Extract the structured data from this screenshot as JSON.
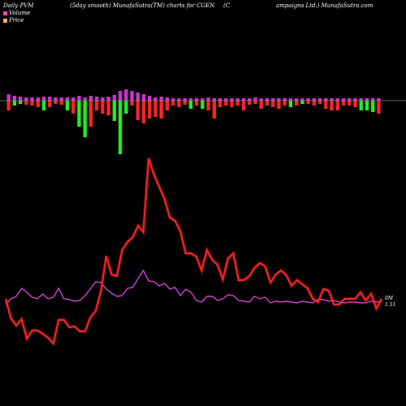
{
  "header": {
    "left": "Daily PVM",
    "center": "(5day smooth) MunafaSutra(TM) charts for CGEN",
    "right_a": "(C",
    "right_b": "ampaigns Ltd.) MunafaSutra.com"
  },
  "legend": {
    "volume_label": "Volume",
    "price_label": "Price",
    "volume_color": "#ff44aa",
    "price_color": "#ffaa66"
  },
  "end_labels": {
    "top": "0M",
    "bottom": "1.51"
  },
  "chart_data": {
    "type": "line",
    "background": "#000000",
    "price_color": "#ff2222",
    "volume_line_color": "#cc44cc",
    "volume_bar_up_color": "#22ee22",
    "volume_bar_down_color": "#ff2222",
    "volume_bar_top_color": "#cc33cc",
    "baseline_color": "#888888",
    "price": [
      368,
      392,
      401,
      393,
      417,
      407,
      407,
      411,
      416,
      423,
      394,
      394,
      403,
      402,
      408,
      408,
      391,
      383,
      358,
      315,
      338,
      340,
      308,
      298,
      292,
      278,
      286,
      195,
      215,
      230,
      245,
      268,
      272,
      285,
      312,
      312,
      316,
      333,
      308,
      320,
      326,
      344,
      318,
      312,
      345,
      345,
      340,
      330,
      324,
      328,
      348,
      338,
      333,
      339,
      352,
      345,
      350,
      355,
      368,
      372,
      356,
      358,
      375,
      375,
      368,
      368,
      368,
      360,
      370,
      362,
      380,
      368
    ],
    "volume_line": [
      375,
      368,
      365,
      355,
      360,
      366,
      368,
      362,
      368,
      366,
      355,
      368,
      369,
      371,
      370,
      364,
      356,
      347,
      348,
      356,
      361,
      365,
      364,
      355,
      354,
      343,
      333,
      346,
      347,
      352,
      349,
      356,
      354,
      364,
      356,
      360,
      370,
      372,
      365,
      365,
      370,
      368,
      363,
      364,
      370,
      371,
      372,
      365,
      368,
      366,
      373,
      371,
      372,
      371,
      372,
      373,
      371,
      372,
      373,
      369,
      369,
      371,
      370,
      372,
      373,
      372,
      372,
      373,
      373,
      371,
      372,
      371
    ],
    "volume_bars": [
      {
        "up": 8,
        "down": 12,
        "green": false
      },
      {
        "up": 6,
        "down": 6,
        "green": true
      },
      {
        "up": 5,
        "down": 4,
        "green": true
      },
      {
        "up": 4,
        "down": 5,
        "green": false
      },
      {
        "up": 4,
        "down": 6,
        "green": false
      },
      {
        "up": 4,
        "down": 8,
        "green": false
      },
      {
        "up": 5,
        "down": 12,
        "green": true
      },
      {
        "up": 5,
        "down": 8,
        "green": false
      },
      {
        "up": 4,
        "down": 4,
        "green": false
      },
      {
        "up": 4,
        "down": 5,
        "green": false
      },
      {
        "up": 4,
        "down": 12,
        "green": true
      },
      {
        "up": 4,
        "down": 16,
        "green": false
      },
      {
        "up": 6,
        "down": 32,
        "green": true
      },
      {
        "up": 4,
        "down": 45,
        "green": true
      },
      {
        "up": 6,
        "down": 32,
        "green": false
      },
      {
        "up": 5,
        "down": 12,
        "green": false
      },
      {
        "up": 4,
        "down": 16,
        "green": false
      },
      {
        "up": 5,
        "down": 18,
        "green": false
      },
      {
        "up": 7,
        "down": 25,
        "green": true
      },
      {
        "up": 12,
        "down": 66,
        "green": true
      },
      {
        "up": 14,
        "down": 16,
        "green": true
      },
      {
        "up": 12,
        "down": 6,
        "green": false
      },
      {
        "up": 10,
        "down": 24,
        "green": false
      },
      {
        "up": 8,
        "down": 28,
        "green": false
      },
      {
        "up": 6,
        "down": 22,
        "green": false
      },
      {
        "up": 4,
        "down": 20,
        "green": false
      },
      {
        "up": 5,
        "down": 22,
        "green": false
      },
      {
        "up": 4,
        "down": 12,
        "green": false
      },
      {
        "up": 3,
        "down": 6,
        "green": false
      },
      {
        "up": 3,
        "down": 8,
        "green": false
      },
      {
        "up": 3,
        "down": 5,
        "green": false
      },
      {
        "up": 3,
        "down": 10,
        "green": true
      },
      {
        "up": 3,
        "down": 6,
        "green": false
      },
      {
        "up": 3,
        "down": 10,
        "green": true
      },
      {
        "up": 4,
        "down": 12,
        "green": false
      },
      {
        "up": 3,
        "down": 22,
        "green": false
      },
      {
        "up": 3,
        "down": 8,
        "green": false
      },
      {
        "up": 3,
        "down": 6,
        "green": false
      },
      {
        "up": 3,
        "down": 8,
        "green": false
      },
      {
        "up": 3,
        "down": 6,
        "green": false
      },
      {
        "up": 3,
        "down": 12,
        "green": false
      },
      {
        "up": 3,
        "down": 5,
        "green": false
      },
      {
        "up": 4,
        "down": 4,
        "green": false
      },
      {
        "up": 3,
        "down": 10,
        "green": false
      },
      {
        "up": 3,
        "down": 6,
        "green": false
      },
      {
        "up": 3,
        "down": 8,
        "green": false
      },
      {
        "up": 3,
        "down": 10,
        "green": false
      },
      {
        "up": 3,
        "down": 6,
        "green": false
      },
      {
        "up": 3,
        "down": 8,
        "green": true
      },
      {
        "up": 3,
        "down": 6,
        "green": false
      },
      {
        "up": 3,
        "down": 4,
        "green": true
      },
      {
        "up": 3,
        "down": 4,
        "green": false
      },
      {
        "up": 3,
        "down": 6,
        "green": false
      },
      {
        "up": 3,
        "down": 4,
        "green": false
      },
      {
        "up": 3,
        "down": 10,
        "green": false
      },
      {
        "up": 3,
        "down": 12,
        "green": false
      },
      {
        "up": 3,
        "down": 12,
        "green": false
      },
      {
        "up": 3,
        "down": 6,
        "green": false
      },
      {
        "up": 3,
        "down": 6,
        "green": false
      },
      {
        "up": 3,
        "down": 8,
        "green": false
      },
      {
        "up": 3,
        "down": 12,
        "green": true
      },
      {
        "up": 3,
        "down": 12,
        "green": true
      },
      {
        "up": 3,
        "down": 14,
        "green": true
      },
      {
        "up": 3,
        "down": 16,
        "green": false
      }
    ]
  }
}
